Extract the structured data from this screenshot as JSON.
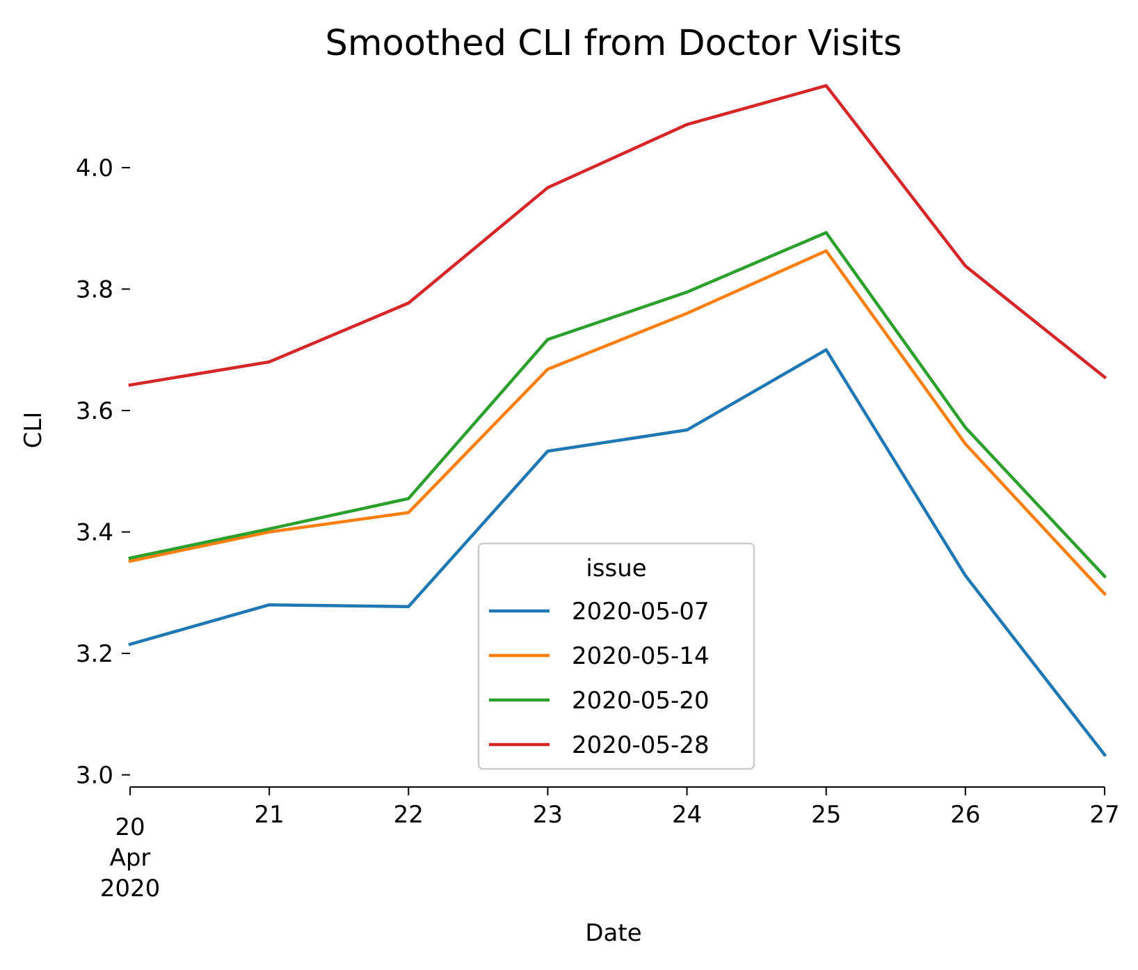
{
  "chart_data": {
    "type": "line",
    "title": "Smoothed CLI from Doctor Visits",
    "xlabel": "Date",
    "ylabel": "CLI",
    "x": [
      "2020-04-20",
      "2020-04-21",
      "2020-04-22",
      "2020-04-23",
      "2020-04-24",
      "2020-04-25",
      "2020-04-26",
      "2020-04-27"
    ],
    "x_tick_labels": [
      {
        "lines": [
          "20",
          "Apr",
          "2020"
        ]
      },
      {
        "lines": [
          "21"
        ]
      },
      {
        "lines": [
          "22"
        ]
      },
      {
        "lines": [
          "23"
        ]
      },
      {
        "lines": [
          "24"
        ]
      },
      {
        "lines": [
          "25"
        ]
      },
      {
        "lines": [
          "26"
        ]
      },
      {
        "lines": [
          "27"
        ]
      }
    ],
    "y_ticks": [
      3.0,
      3.2,
      3.4,
      3.6,
      3.8,
      4.0
    ],
    "y_tick_labels": [
      "3.0",
      "3.2",
      "3.4",
      "3.6",
      "3.8",
      "4.0"
    ],
    "ylim": [
      2.98,
      4.15
    ],
    "grid": false,
    "legend": {
      "title": "issue",
      "placement": "lower-center"
    },
    "series": [
      {
        "name": "2020-05-07",
        "color": "#1f77b4",
        "values": [
          3.215,
          3.28,
          3.277,
          3.533,
          3.568,
          3.7,
          3.328,
          3.033
        ]
      },
      {
        "name": "2020-05-14",
        "color": "#ff7f0e",
        "values": [
          3.352,
          3.4,
          3.432,
          3.668,
          3.76,
          3.863,
          3.545,
          3.298
        ]
      },
      {
        "name": "2020-05-20",
        "color": "#2ca02c",
        "values": [
          3.357,
          3.405,
          3.455,
          3.717,
          3.795,
          3.893,
          3.572,
          3.327
        ]
      },
      {
        "name": "2020-05-28",
        "color": "#d62728",
        "values": [
          3.642,
          3.68,
          3.777,
          3.967,
          4.071,
          4.135,
          3.838,
          3.655
        ]
      }
    ]
  }
}
